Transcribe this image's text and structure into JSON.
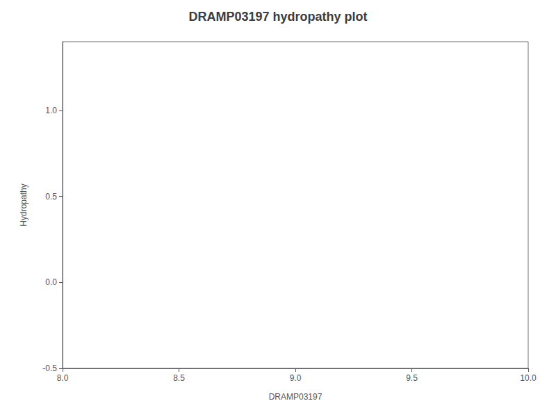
{
  "chart_data": {
    "type": "line",
    "title": "DRAMP03197 hydropathy plot",
    "xlabel": "DRAMP03197",
    "ylabel": "Hydropathy",
    "xlim": [
      8.0,
      10.0
    ],
    "ylim": [
      -0.5,
      1.4
    ],
    "xticks": [
      {
        "value": 8.0,
        "label": "8.0"
      },
      8.5,
      {
        "value": 9.0,
        "label": "9.0"
      },
      9.5,
      {
        "value": 10.0,
        "label": "10.0"
      }
    ],
    "yticks": [
      -0.5,
      {
        "value": 0.0,
        "label": "0.0"
      },
      0.5,
      {
        "value": 1.0,
        "label": "1.0"
      }
    ],
    "grid": false
  }
}
